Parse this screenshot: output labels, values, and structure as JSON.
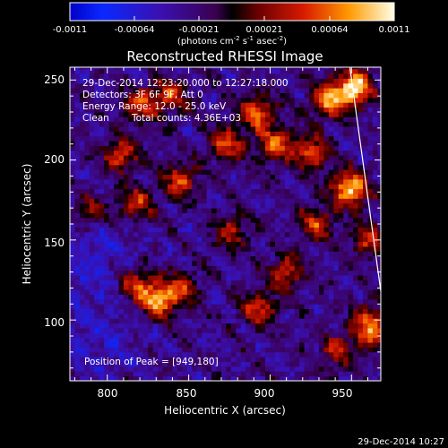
{
  "chart_data": {
    "type": "heatmap",
    "title": "Reconstructed RHESSI Image",
    "xlabel": "Heliocentric X (arcsec)",
    "ylabel": "Heliocentric Y (arcsec)",
    "xlim": [
      777,
      968
    ],
    "ylim": [
      62,
      258
    ],
    "x_ticks": [
      800,
      850,
      900,
      950
    ],
    "y_ticks": [
      100,
      150,
      200,
      250
    ],
    "colorbar": {
      "range": [
        -0.0011,
        0.0011
      ],
      "ticks": [
        "-0.0011",
        "-0.00064",
        "-0.00021",
        "0.00021",
        "0.00064",
        "0.0011"
      ],
      "units_label": "(photons cm",
      "units_exp1": "-2",
      "units_mid1": " s",
      "units_exp2": "-1",
      "units_mid2": " asec",
      "units_exp3": "-2",
      "units_end": ")"
    },
    "info": {
      "time_range": "29-Dec-2014 12:23:20.000 to 12:27:18.000",
      "detectors": "Detectors: 3F 6F 9F, Att 0",
      "energy_range": "Energy Range: 12.0 - 25.0 keV",
      "clean": "Clean",
      "total_counts": "Total counts: 4.36E+03",
      "peak": "Position of Peak = [949,180]"
    },
    "peak": {
      "x": 949,
      "y": 180
    },
    "limb_line": [
      [
        949,
        258
      ],
      [
        968,
        118
      ]
    ],
    "bright_sources": [
      {
        "x": 952,
        "y": 245,
        "intensity": 1.0
      },
      {
        "x": 949,
        "y": 182,
        "intensity": 0.95
      },
      {
        "x": 936,
        "y": 238,
        "intensity": 0.8
      },
      {
        "x": 925,
        "y": 205,
        "intensity": 0.65
      },
      {
        "x": 903,
        "y": 210,
        "intensity": 0.65
      },
      {
        "x": 892,
        "y": 230,
        "intensity": 0.7
      },
      {
        "x": 873,
        "y": 210,
        "intensity": 0.6
      },
      {
        "x": 845,
        "y": 188,
        "intensity": 0.6
      },
      {
        "x": 820,
        "y": 235,
        "intensity": 0.55
      },
      {
        "x": 808,
        "y": 203,
        "intensity": 0.6
      },
      {
        "x": 818,
        "y": 173,
        "intensity": 0.55
      },
      {
        "x": 838,
        "y": 240,
        "intensity": 0.55
      },
      {
        "x": 831,
        "y": 112,
        "intensity": 0.8
      },
      {
        "x": 818,
        "y": 122,
        "intensity": 0.6
      },
      {
        "x": 845,
        "y": 120,
        "intensity": 0.55
      },
      {
        "x": 893,
        "y": 107,
        "intensity": 0.6
      },
      {
        "x": 910,
        "y": 130,
        "intensity": 0.55
      },
      {
        "x": 928,
        "y": 160,
        "intensity": 0.55
      },
      {
        "x": 960,
        "y": 150,
        "intensity": 0.5
      },
      {
        "x": 962,
        "y": 100,
        "intensity": 0.5
      },
      {
        "x": 940,
        "y": 80,
        "intensity": 0.45
      },
      {
        "x": 960,
        "y": 90,
        "intensity": 0.45
      },
      {
        "x": 876,
        "y": 155,
        "intensity": 0.45
      },
      {
        "x": 790,
        "y": 168,
        "intensity": 0.45
      }
    ]
  },
  "timestamp": "29-Dec-2014 10:27"
}
